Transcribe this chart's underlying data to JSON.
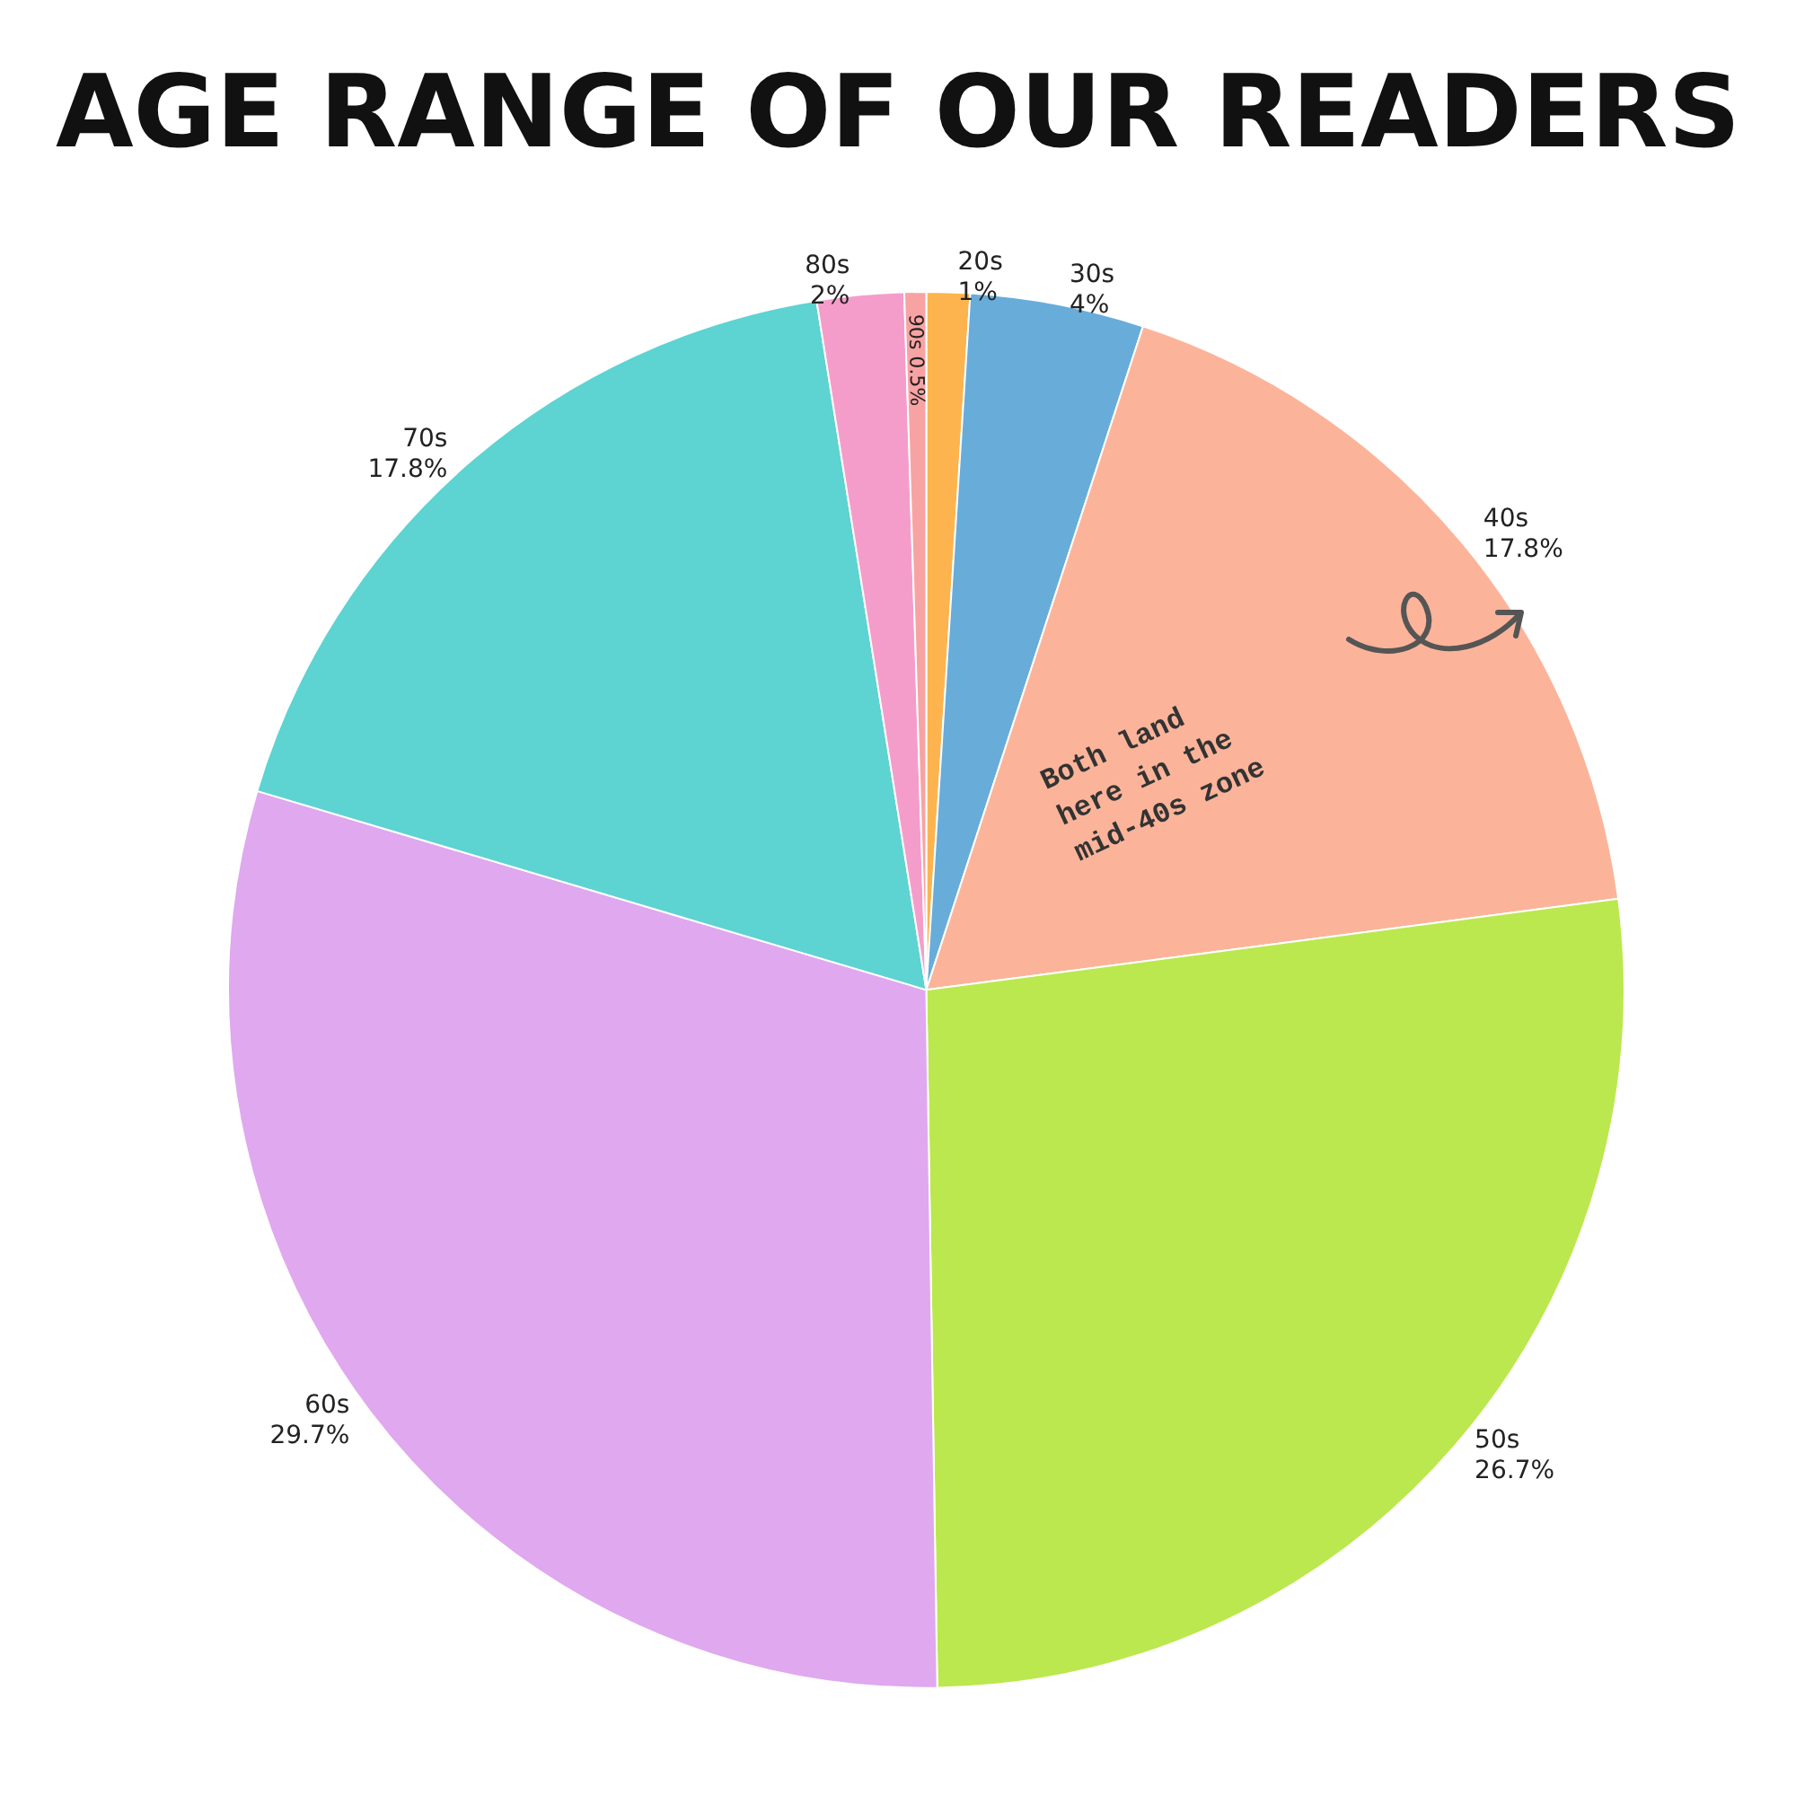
{
  "chart_data": {
    "type": "pie",
    "title": "AGE RANGE OF OUR READERS",
    "categories": [
      "20s",
      "30s",
      "40s",
      "50s",
      "60s",
      "70s",
      "80s",
      "90s"
    ],
    "values": [
      1,
      4,
      17.8,
      26.7,
      29.7,
      17.8,
      2,
      0.5
    ],
    "value_labels": [
      "1%",
      "4%",
      "17.8%",
      "26.7%",
      "29.7%",
      "17.8%",
      "2%",
      "0.5%"
    ],
    "colors": [
      "#fdb44f",
      "#68acda",
      "#fbb49a",
      "#bbe84e",
      "#e0a8ef",
      "#5dd3d2",
      "#f59dca",
      "#f8a3a3"
    ],
    "annotations": [
      "Both land here in the mid-40s zone"
    ],
    "legend": false
  }
}
